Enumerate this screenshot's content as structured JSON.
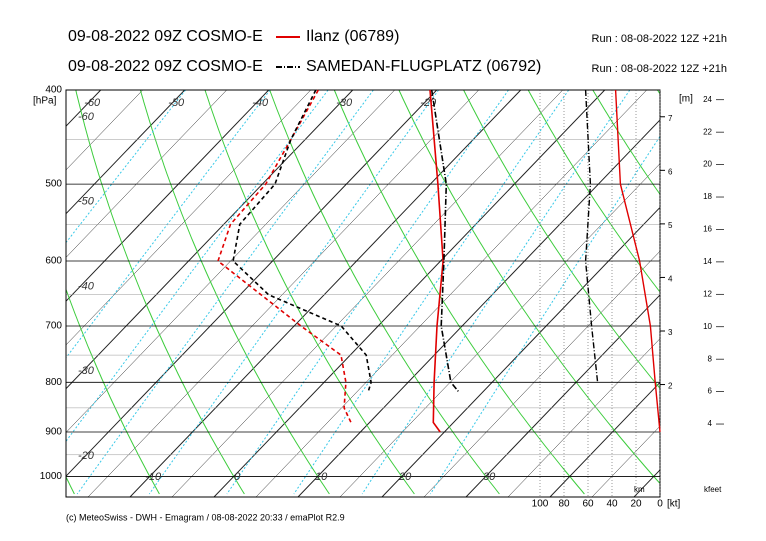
{
  "chart_data": {
    "type": "emagram",
    "ylabel": "[hPa]",
    "ylim": [
      1050,
      400
    ],
    "yticks": [
      400,
      500,
      600,
      700,
      800,
      900,
      1000
    ],
    "log_y": true,
    "xticks": [
      -60,
      -50,
      -40,
      -30,
      -20,
      -10,
      0,
      10,
      20,
      30
    ],
    "adiabat_labels": [
      -60,
      -50,
      -40,
      -30,
      -20
    ],
    "y2label": "[m]",
    "y2sublabel": "km",
    "y2lim": [
      -0.1,
      7.5
    ],
    "y2ticks": [
      2,
      3,
      4,
      5,
      6,
      7
    ],
    "y3label": "kfeet",
    "y3lim": [
      -0.5,
      24.6
    ],
    "y3ticks": [
      4,
      6,
      8,
      10,
      12,
      14,
      16,
      18,
      20,
      22,
      24
    ],
    "x2label": "[kt]",
    "x2lim": [
      100,
      0
    ],
    "x2ticks": [
      100,
      80,
      60,
      40,
      20,
      0
    ],
    "series": [
      {
        "name": "Ilanz (06789)",
        "model": "09-08-2022 09Z COSMO-E",
        "run": "Run : 08-08-2022 12Z +21h",
        "color": "#e00000",
        "dash": "",
        "pressure": [
          400,
          500,
          600,
          700,
          800,
          880,
          900
        ],
        "temperature": [
          -20.8,
          -9.1,
          0.3,
          7.0,
          13.1,
          17.6,
          19.5
        ],
        "dew_pressure": [
          400,
          450,
          500,
          550,
          600,
          700,
          750,
          800,
          850,
          880
        ],
        "dewpoint": [
          -34.1,
          -31.7,
          -29.6,
          -29.2,
          -26.5,
          -9.2,
          -1.1,
          2.6,
          5.3,
          7.8
        ],
        "wind_pressure": [
          400,
          500,
          600,
          700,
          800,
          900
        ],
        "wind": [
          37,
          33,
          17,
          8,
          4,
          0
        ]
      },
      {
        "name": "SAMEDAN-FLUGPLATZ (06792)",
        "model": "09-08-2022 09Z COSMO-E",
        "run": "Run : 08-08-2022 12Z +21h",
        "color": "#000000",
        "dash": "6 2 1 2",
        "pressure": [
          400,
          500,
          600,
          700,
          800,
          820
        ],
        "temperature": [
          -20.6,
          -8.1,
          0.4,
          7.5,
          15.1,
          17.3
        ],
        "dew_pressure": [
          400,
          450,
          500,
          550,
          600,
          650,
          700,
          750,
          800,
          820
        ],
        "dewpoint": [
          -34.4,
          -31.7,
          -28.5,
          -28.1,
          -24.7,
          -16.6,
          -4.4,
          1.9,
          5.6,
          6.4
        ],
        "wind_pressure": [
          400,
          500,
          600,
          700,
          800
        ],
        "wind": [
          62,
          58,
          62,
          57,
          52
        ]
      }
    ],
    "footer": "(c) MeteoSwiss - DWH - Emagram / 08-08-2022 20:33 / emaPlot R2.9"
  }
}
